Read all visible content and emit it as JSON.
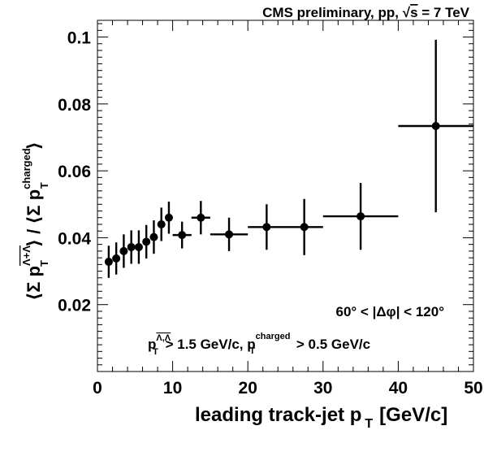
{
  "chart_data": {
    "type": "scatter",
    "title_parts": {
      "prefix": "CMS preliminary, pp, ",
      "sqrt": "√",
      "s": "s",
      "suffix": " = 7 TeV"
    },
    "xlabel": "leading track-jet p",
    "xlabel_sub": "T",
    "xlabel_unit": "[GeV/c]",
    "ylabel": {
      "open_bracket_1": "⟨",
      "sigma_1": "Σ p",
      "sub_1": "T",
      "sup_1": "Λ+Λ",
      "close_bracket_1": "⟩",
      "slash": " / ",
      "open_bracket_2": "⟨",
      "sigma_2": "Σ p",
      "sub_2": "T",
      "sup_2": "charged",
      "close_bracket_2": "⟩"
    },
    "xlim": [
      0,
      50
    ],
    "ylim": [
      0,
      0.105
    ],
    "xticks": [
      0,
      10,
      20,
      30,
      40,
      50
    ],
    "xtick_labels": [
      "0",
      "10",
      "20",
      "30",
      "40",
      "50"
    ],
    "yticks": [
      0.02,
      0.04,
      0.06,
      0.08,
      0.1
    ],
    "ytick_labels": [
      "0.02",
      "0.04",
      "0.06",
      "0.08",
      "0.1"
    ],
    "annotations": {
      "dphi": "60° < |Δφ| < 120°",
      "cut_p1": "p",
      "cut_sup1": "Λ,Λ",
      "cut_sub1": "T",
      "cut_mid": " > 1.5 GeV/c, p",
      "cut_sup2": "charged",
      "cut_sub2": "T",
      "cut_end": " > 0.5 GeV/c"
    },
    "points": [
      {
        "x": 1.5,
        "y": 0.0328,
        "xerr": 0.5,
        "yerr": 0.0048
      },
      {
        "x": 2.5,
        "y": 0.0338,
        "xerr": 0.5,
        "yerr": 0.0048
      },
      {
        "x": 3.5,
        "y": 0.036,
        "xerr": 0.5,
        "yerr": 0.005
      },
      {
        "x": 4.5,
        "y": 0.0372,
        "xerr": 0.5,
        "yerr": 0.005
      },
      {
        "x": 5.5,
        "y": 0.0372,
        "xerr": 0.5,
        "yerr": 0.005
      },
      {
        "x": 6.5,
        "y": 0.0388,
        "xerr": 0.5,
        "yerr": 0.005
      },
      {
        "x": 7.5,
        "y": 0.0402,
        "xerr": 0.5,
        "yerr": 0.005
      },
      {
        "x": 8.5,
        "y": 0.044,
        "xerr": 0.5,
        "yerr": 0.005
      },
      {
        "x": 9.5,
        "y": 0.046,
        "xerr": 0.5,
        "yerr": 0.0048
      },
      {
        "x": 11.25,
        "y": 0.0408,
        "xerr": 1.25,
        "yerr": 0.004
      },
      {
        "x": 13.75,
        "y": 0.046,
        "xerr": 1.25,
        "yerr": 0.005
      },
      {
        "x": 17.5,
        "y": 0.041,
        "xerr": 2.5,
        "yerr": 0.005
      },
      {
        "x": 22.5,
        "y": 0.0432,
        "xerr": 2.5,
        "yerr": 0.0068
      },
      {
        "x": 27.5,
        "y": 0.0432,
        "xerr": 2.5,
        "yerr": 0.0084
      },
      {
        "x": 35.0,
        "y": 0.0464,
        "xerr": 5.0,
        "yerr": 0.01
      },
      {
        "x": 45.0,
        "y": 0.0734,
        "xerr": 5.0,
        "yerr": 0.0258
      }
    ]
  }
}
